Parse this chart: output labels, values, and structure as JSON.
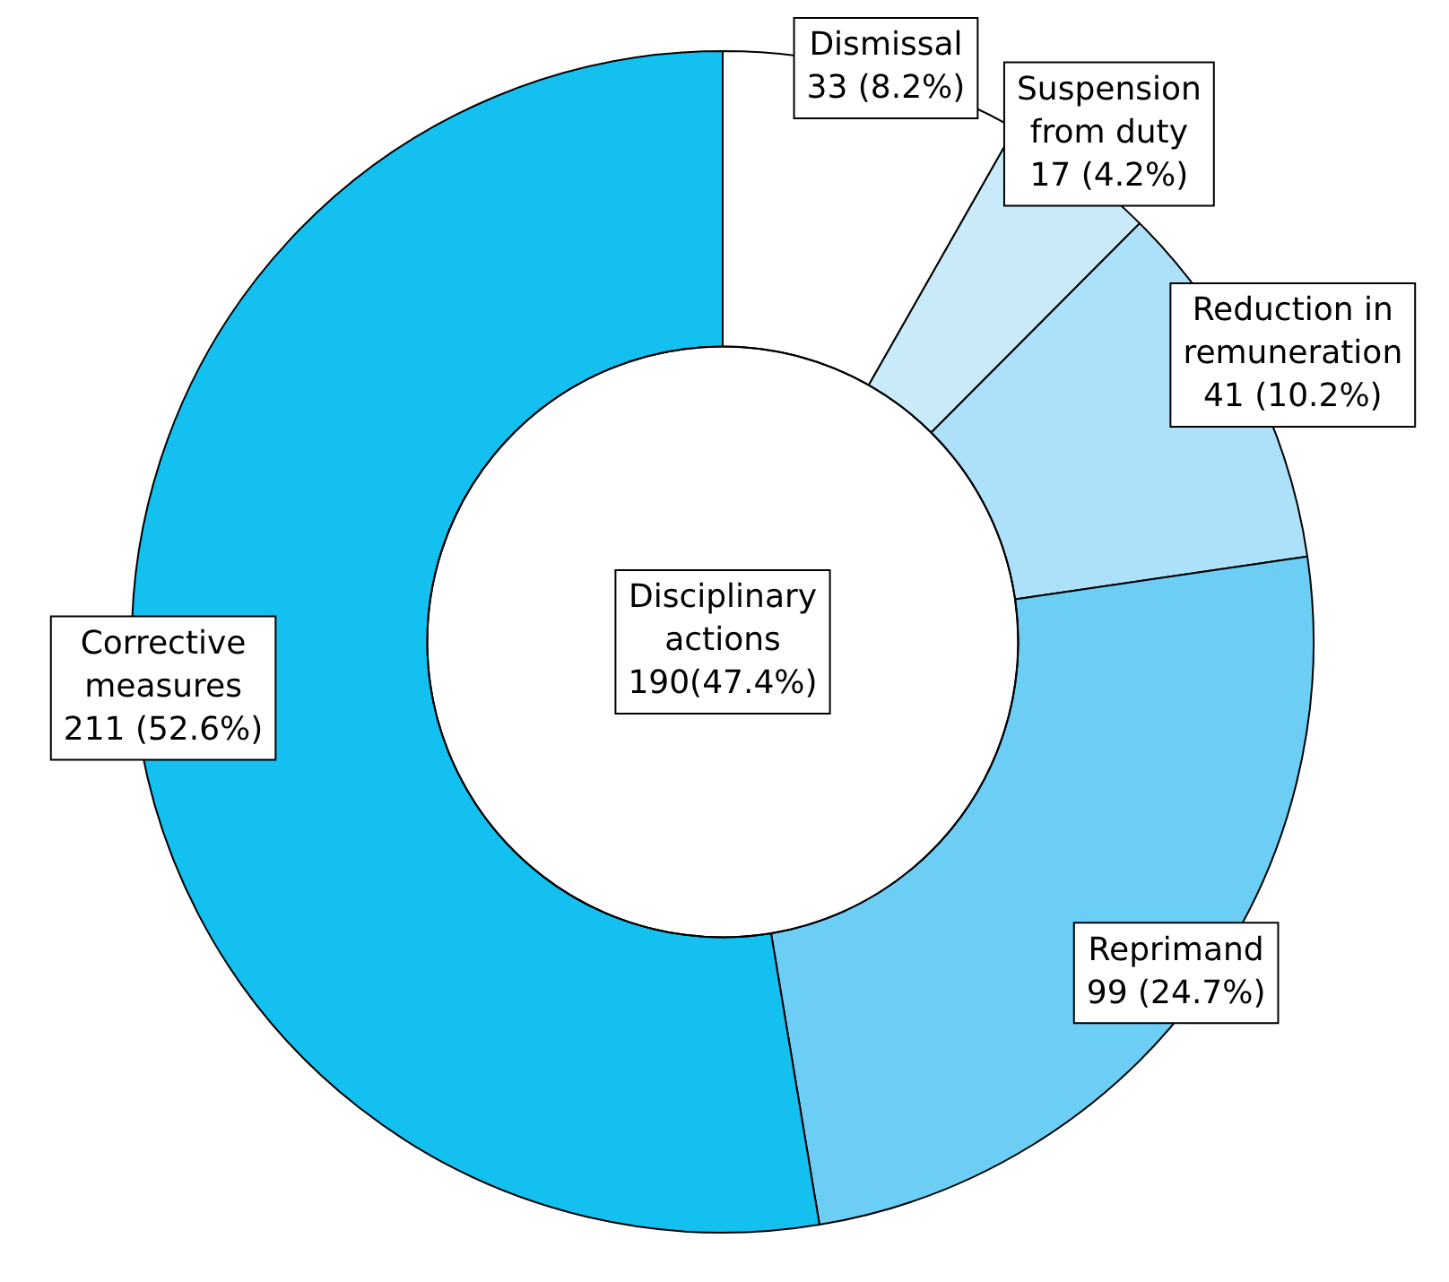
{
  "chart_data": {
    "type": "donut",
    "categories": [
      "Dismissal",
      "Suspension from duty",
      "Reduction in remuneration",
      "Reprimand",
      "Corrective measures"
    ],
    "values": [
      33,
      17,
      41,
      99,
      211
    ],
    "value_labels": [
      "33 (8.2%)",
      "17 (4.2%)",
      "41 (10.2%)",
      "99 (24.7%)",
      "211 (52.6%)"
    ],
    "colors": [
      "#ffffff",
      "#c9eaf9",
      "#ade0f9",
      "#6dcef5",
      "#14c0f0"
    ],
    "annotations": [
      "Disciplinary actions 190(47.4%)"
    ],
    "legend": false
  }
}
